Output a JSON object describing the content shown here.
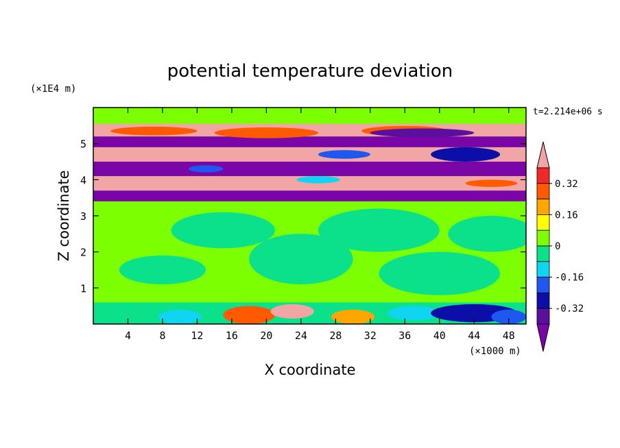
{
  "chart_data": {
    "type": "heatmap",
    "title": "potential temperature deviation",
    "xlabel": "X coordinate",
    "ylabel": "Z coordinate",
    "x_unit": "(×1000 m)",
    "y_unit": "(×1E4 m)",
    "time_label": "t=2.214e+06 s",
    "xlim": [
      0,
      50
    ],
    "ylim": [
      0,
      6
    ],
    "x_ticks": [
      4,
      8,
      12,
      16,
      20,
      24,
      28,
      32,
      36,
      40,
      44,
      48
    ],
    "y_ticks": [
      1,
      2,
      3,
      4,
      5
    ],
    "colorbar": {
      "levels": [
        -0.4,
        -0.32,
        -0.24,
        -0.16,
        -0.08,
        0,
        0.08,
        0.16,
        0.24,
        0.32,
        0.4
      ],
      "labels": [
        "0.32",
        "0.16",
        "0",
        "-0.16",
        "-0.32"
      ],
      "label_values": [
        0.32,
        0.16,
        0,
        -0.16,
        -0.32
      ],
      "colors": [
        "#7a06a8",
        "#5a0f9f",
        "#0b0fa8",
        "#1e58f0",
        "#0fd5f0",
        "#0be08a",
        "#7cff00",
        "#ffff00",
        "#ffa500",
        "#ff5a00",
        "#f02828",
        "#f2a5a5"
      ]
    }
  }
}
